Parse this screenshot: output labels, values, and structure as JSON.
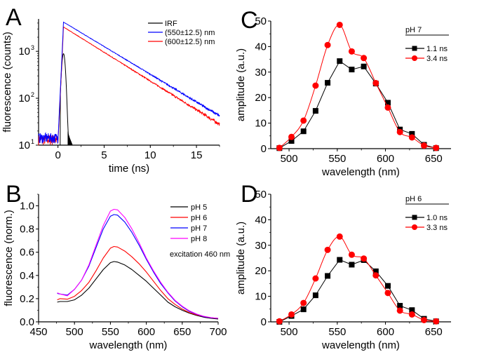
{
  "chart_data": [
    {
      "panel": "A",
      "type": "line",
      "title": "",
      "xlabel": "time (ns)",
      "ylabel": "fluorescence (counts)",
      "xlim": [
        -2.1,
        17.5
      ],
      "ylim": [
        10,
        4900
      ],
      "yscale": "log",
      "xticks": [
        0,
        5,
        10,
        15
      ],
      "xtick_labels": [
        "0",
        "5",
        "10",
        "15"
      ],
      "yticks": [
        10,
        100,
        1000
      ],
      "ytick_labels": [
        "10",
        "10",
        "10"
      ],
      "ytick_exponents": [
        "1",
        "2",
        "3"
      ],
      "legend_position": "top-right",
      "series": [
        {
          "name": "IRF",
          "color": "#000000",
          "shape": "pulse",
          "peak_time": 0.6,
          "peak_value": 880,
          "width_ns": 0.35,
          "start": -2.1,
          "end": 1.9
        },
        {
          "name": "(550±12.5) nm",
          "color": "#0000ff",
          "shape": "decay",
          "rise_start": 0.0,
          "peak_time": 0.6,
          "peak_value": 4200,
          "end_value": 42,
          "baseline": 12
        },
        {
          "name": "(600±12.5) nm",
          "color": "#ff0000",
          "shape": "decay",
          "rise_start": 0.0,
          "peak_time": 0.6,
          "peak_value": 3300,
          "end_value": 28,
          "baseline": 11
        }
      ]
    },
    {
      "panel": "B",
      "type": "line",
      "title": "",
      "xlabel": "wavelength (nm)",
      "ylabel": "fluorescence (norm.)",
      "xlim": [
        450,
        700
      ],
      "ylim": [
        0.0,
        1.1
      ],
      "xticks": [
        450,
        500,
        550,
        600,
        650,
        700
      ],
      "xtick_labels": [
        "450",
        "500",
        "550",
        "600",
        "650",
        "700"
      ],
      "yticks": [
        0.0,
        0.2,
        0.4,
        0.6,
        0.8,
        1.0
      ],
      "ytick_labels": [
        "0.0",
        "0.2",
        "0.4",
        "0.6",
        "0.8",
        "1.0"
      ],
      "legend_position": "top-right",
      "annotation": "excitation 460 nm",
      "x": [
        476,
        480,
        490,
        500,
        510,
        520,
        530,
        540,
        550,
        555,
        560,
        570,
        580,
        590,
        600,
        610,
        620,
        630,
        640,
        650,
        660,
        670,
        680,
        690,
        700
      ],
      "series": [
        {
          "name": "pH 5",
          "color": "#000000",
          "values": [
            0.17,
            0.175,
            0.175,
            0.19,
            0.23,
            0.29,
            0.37,
            0.45,
            0.51,
            0.52,
            0.515,
            0.49,
            0.45,
            0.4,
            0.35,
            0.29,
            0.23,
            0.17,
            0.13,
            0.1,
            0.075,
            0.055,
            0.04,
            0.03,
            0.025
          ]
        },
        {
          "name": "pH 6",
          "color": "#ff0000",
          "values": [
            0.19,
            0.2,
            0.195,
            0.22,
            0.27,
            0.34,
            0.44,
            0.55,
            0.635,
            0.65,
            0.645,
            0.61,
            0.56,
            0.5,
            0.43,
            0.35,
            0.27,
            0.2,
            0.15,
            0.11,
            0.08,
            0.06,
            0.045,
            0.035,
            0.03
          ]
        },
        {
          "name": "pH 7",
          "color": "#0000ff",
          "values": [
            0.245,
            0.24,
            0.23,
            0.28,
            0.36,
            0.48,
            0.64,
            0.8,
            0.91,
            0.925,
            0.92,
            0.86,
            0.77,
            0.66,
            0.54,
            0.43,
            0.33,
            0.25,
            0.18,
            0.13,
            0.09,
            0.065,
            0.045,
            0.035,
            0.03
          ]
        },
        {
          "name": "pH 8",
          "color": "#ff00ff",
          "values": [
            0.25,
            0.24,
            0.225,
            0.28,
            0.36,
            0.49,
            0.66,
            0.83,
            0.955,
            0.97,
            0.965,
            0.9,
            0.8,
            0.68,
            0.55,
            0.44,
            0.34,
            0.255,
            0.185,
            0.135,
            0.095,
            0.067,
            0.048,
            0.036,
            0.03
          ]
        }
      ]
    },
    {
      "panel": "C",
      "type": "line",
      "title": "",
      "xlabel": "wavelength (nm)",
      "ylabel": "amplitude (a.u.)",
      "xlim": [
        481,
        668
      ],
      "ylim": [
        0,
        50
      ],
      "xticks": [
        500,
        550,
        600,
        650
      ],
      "xtick_labels": [
        "500",
        "550",
        "600",
        "650"
      ],
      "yticks": [
        0,
        10,
        20,
        30,
        40,
        50
      ],
      "ytick_labels": [
        "0",
        "10",
        "20",
        "30",
        "40",
        "50"
      ],
      "legend_title": "pH 7",
      "legend_position": "top-right",
      "x": [
        490,
        502.5,
        515,
        527.5,
        540,
        552.5,
        565,
        577.5,
        590,
        602.5,
        615,
        627.5,
        640,
        652.5
      ],
      "series": [
        {
          "name": "1.1 ns",
          "color": "#000000",
          "marker": "square",
          "values": [
            0.2,
            3.0,
            6.8,
            14.8,
            25.8,
            34.3,
            31.0,
            32.2,
            25.5,
            18.0,
            7.5,
            5.8,
            1.5,
            0.2
          ]
        },
        {
          "name": "3.4 ns",
          "color": "#ff0000",
          "marker": "circle",
          "values": [
            0.3,
            4.6,
            11.0,
            24.7,
            40.6,
            48.5,
            38.1,
            35.5,
            25.7,
            16.1,
            6.5,
            4.4,
            1.2,
            0.3
          ]
        }
      ]
    },
    {
      "panel": "D",
      "type": "line",
      "title": "",
      "xlabel": "wavelength (nm)",
      "ylabel": "amplitude (a.u.)",
      "xlim": [
        481,
        668
      ],
      "ylim": [
        0,
        50
      ],
      "xticks": [
        500,
        550,
        600,
        650
      ],
      "xtick_labels": [
        "500",
        "550",
        "600",
        "650"
      ],
      "yticks": [
        0,
        10,
        20,
        30,
        40,
        50
      ],
      "ytick_labels": [
        "0",
        "10",
        "20",
        "30",
        "40",
        "50"
      ],
      "legend_title": "pH 6",
      "legend_position": "top-right",
      "x": [
        490,
        502.5,
        515,
        527.5,
        540,
        552.5,
        565,
        577.5,
        590,
        602.5,
        615,
        627.5,
        640,
        652.5
      ],
      "series": [
        {
          "name": "1.0 ns",
          "color": "#000000",
          "marker": "square",
          "values": [
            0.0,
            2.3,
            4.9,
            10.4,
            18.0,
            24.3,
            22.4,
            24.2,
            19.8,
            14.1,
            6.3,
            4.6,
            1.2,
            0.2
          ]
        },
        {
          "name": "3.3 ns",
          "color": "#ff0000",
          "marker": "circle",
          "values": [
            0.2,
            2.9,
            7.4,
            17.0,
            28.2,
            33.4,
            26.3,
            24.8,
            18.2,
            11.3,
            4.4,
            2.9,
            0.7,
            0.2
          ]
        }
      ]
    }
  ]
}
